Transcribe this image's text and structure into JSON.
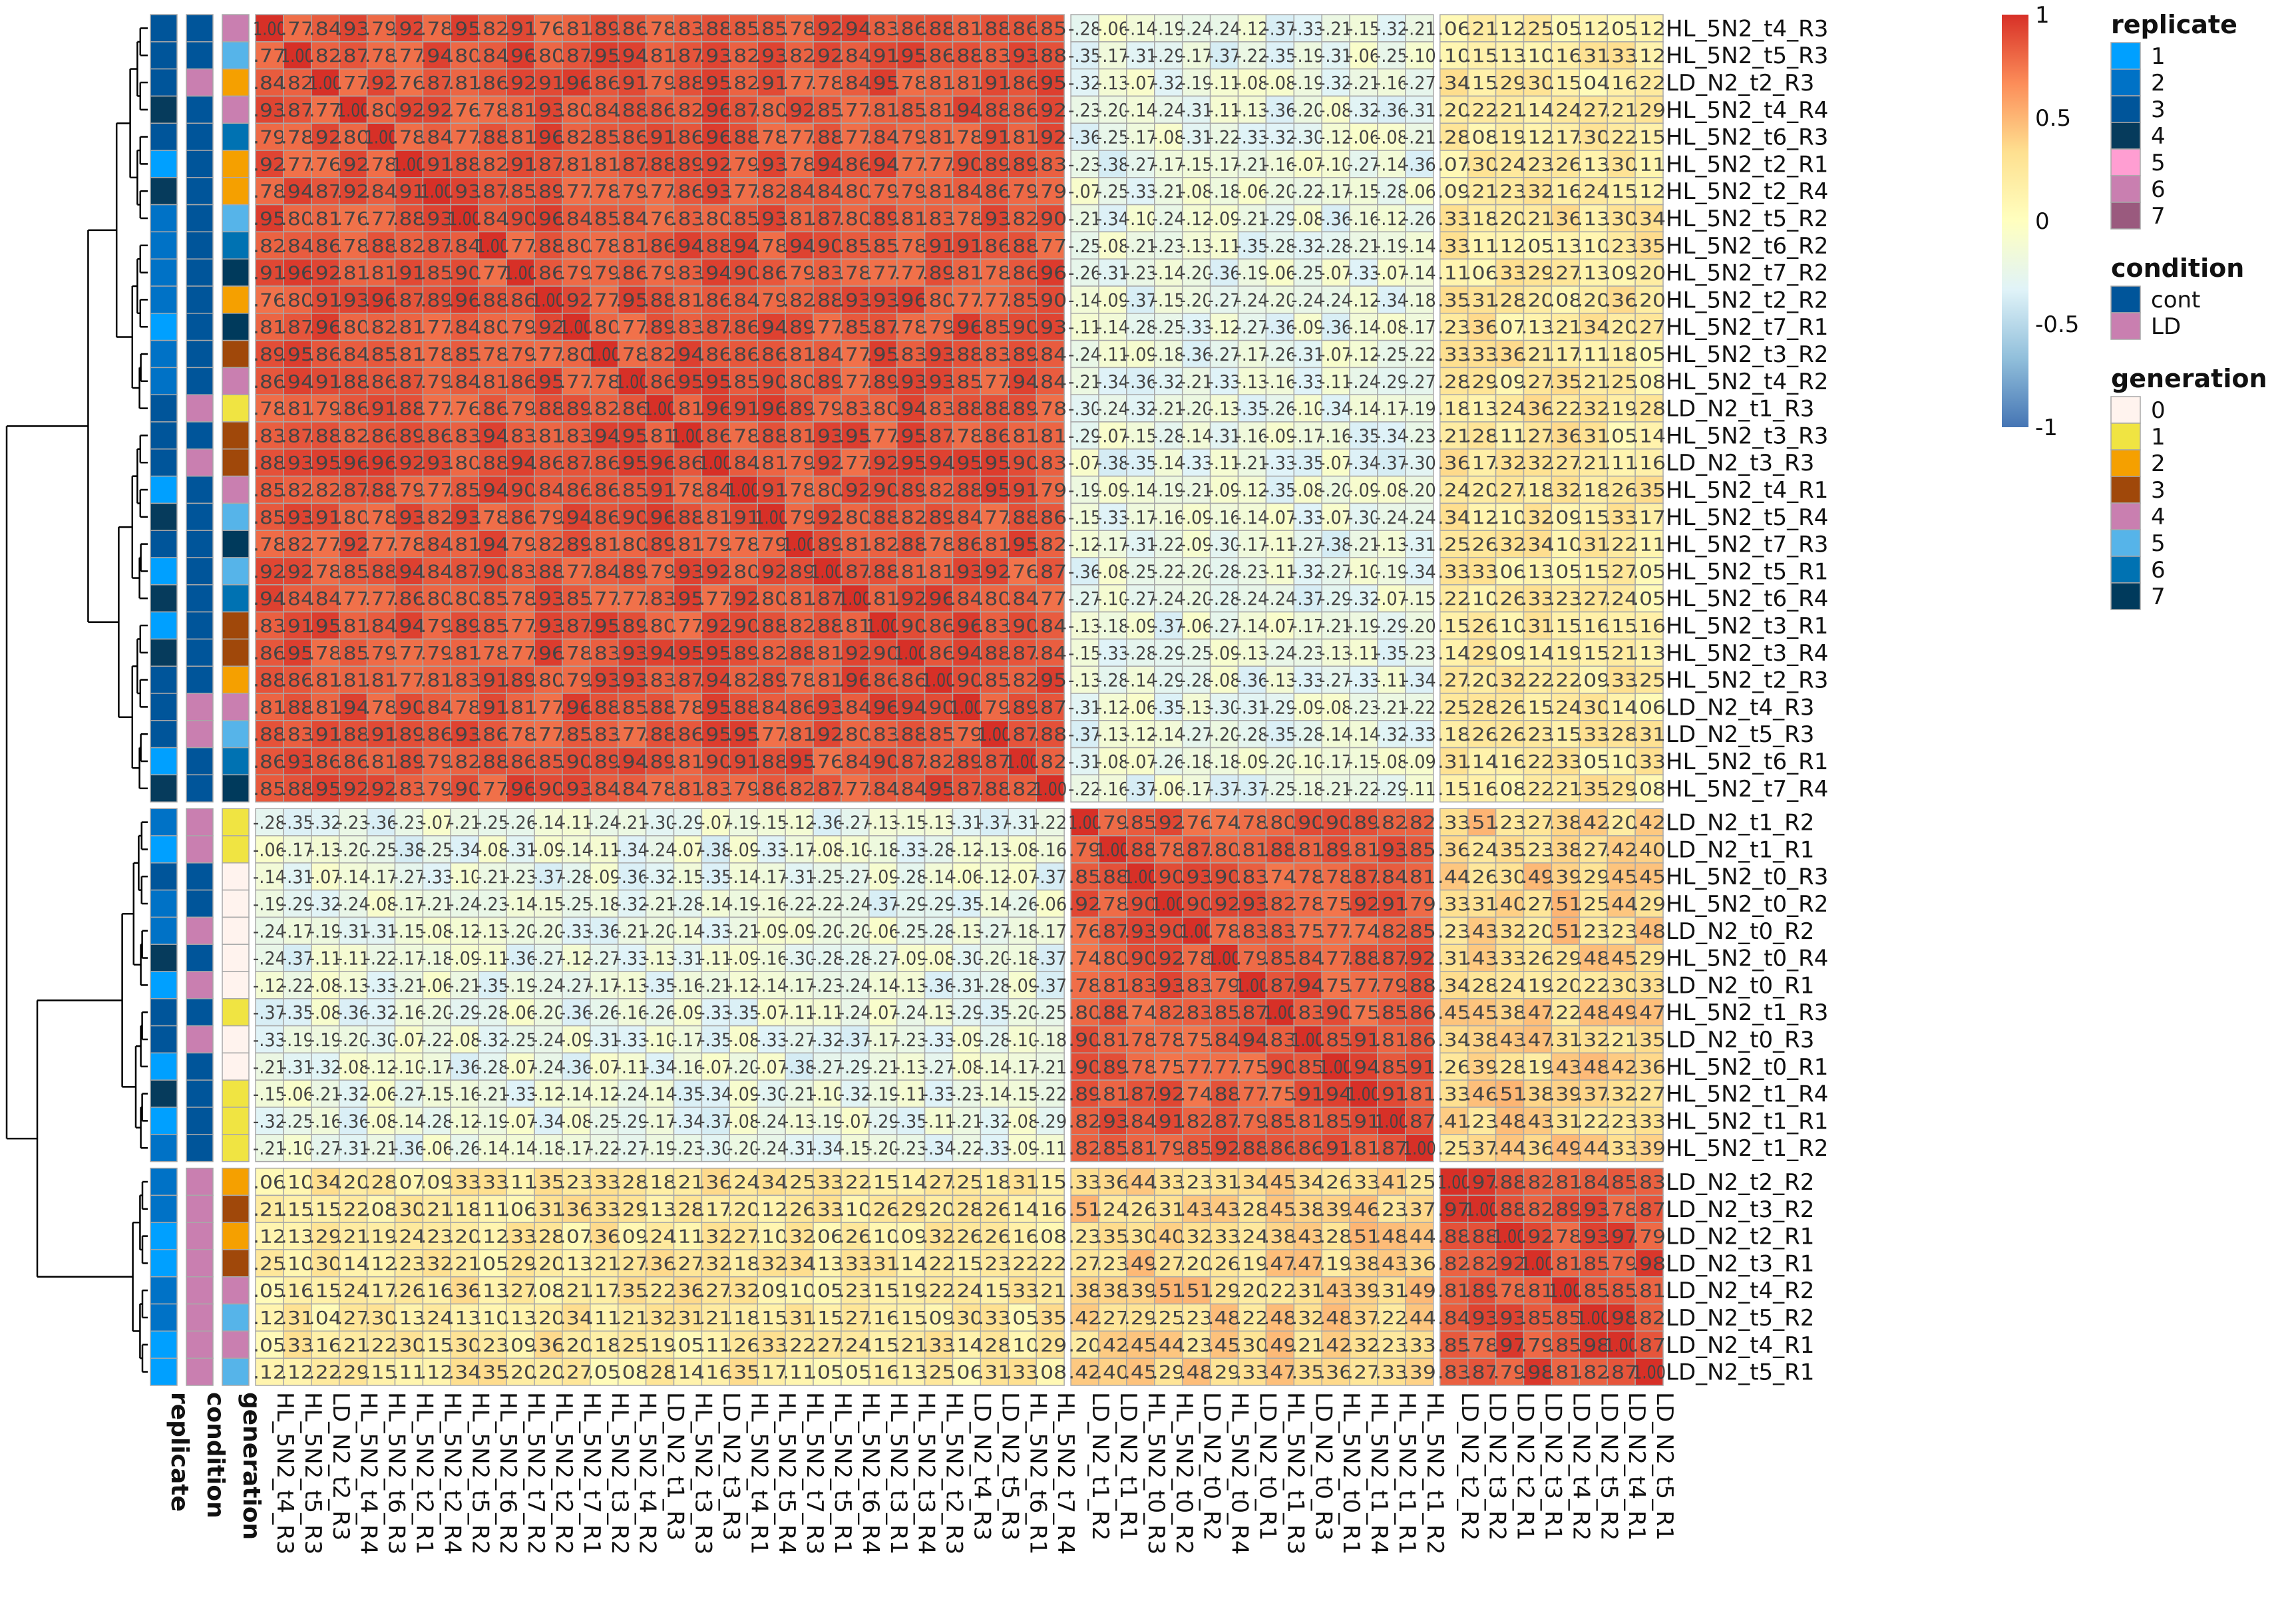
{
  "chart_data": {
    "type": "heatmap",
    "rows": [
      "HL_5N2_t4_R3",
      "HL_5N2_t5_R3",
      "LD_N2_t2_R3",
      "HL_5N2_t4_R4",
      "HL_5N2_t6_R3",
      "HL_5N2_t2_R1",
      "HL_5N2_t2_R4",
      "HL_5N2_t5_R2",
      "HL_5N2_t6_R2",
      "HL_5N2_t7_R2",
      "HL_5N2_t2_R2",
      "HL_5N2_t7_R1",
      "HL_5N2_t3_R2",
      "HL_5N2_t4_R2",
      "LD_N2_t1_R3",
      "HL_5N2_t3_R3",
      "LD_N2_t3_R3",
      "HL_5N2_t4_R1",
      "HL_5N2_t5_R4",
      "HL_5N2_t7_R3",
      "HL_5N2_t5_R1",
      "HL_5N2_t6_R4",
      "HL_5N2_t3_R1",
      "HL_5N2_t3_R4",
      "HL_5N2_t2_R3",
      "LD_N2_t4_R3",
      "LD_N2_t5_R3",
      "HL_5N2_t6_R1",
      "HL_5N2_t7_R4",
      "LD_N2_t1_R2",
      "LD_N2_t1_R1",
      "HL_5N2_t0_R3",
      "HL_5N2_t0_R2",
      "LD_N2_t0_R2",
      "HL_5N2_t0_R4",
      "LD_N2_t0_R1",
      "HL_5N2_t1_R3",
      "LD_N2_t0_R3",
      "HL_5N2_t0_R1",
      "HL_5N2_t1_R4",
      "HL_5N2_t1_R1",
      "HL_5N2_t1_R2",
      "LD_N2_t2_R2",
      "LD_N2_t3_R2",
      "LD_N2_t2_R1",
      "LD_N2_t3_R1",
      "LD_N2_t4_R2",
      "LD_N2_t5_R2",
      "LD_N2_t4_R1",
      "LD_N2_t5_R1"
    ],
    "columns": [
      "HL_5N2_t4_R3",
      "HL_5N2_t5_R3",
      "LD_N2_t2_R3",
      "HL_5N2_t4_R4",
      "HL_5N2_t6_R3",
      "HL_5N2_t2_R1",
      "HL_5N2_t2_R4",
      "HL_5N2_t5_R2",
      "HL_5N2_t6_R2",
      "HL_5N2_t7_R2",
      "HL_5N2_t2_R2",
      "HL_5N2_t7_R1",
      "HL_5N2_t3_R2",
      "HL_5N2_t4_R2",
      "LD_N2_t1_R3",
      "HL_5N2_t3_R3",
      "LD_N2_t3_R3",
      "HL_5N2_t4_R1",
      "HL_5N2_t5_R4",
      "HL_5N2_t7_R3",
      "HL_5N2_t5_R1",
      "HL_5N2_t6_R4",
      "HL_5N2_t3_R1",
      "HL_5N2_t3_R4",
      "HL_5N2_t2_R3",
      "LD_N2_t4_R3",
      "LD_N2_t5_R3",
      "HL_5N2_t6_R1",
      "HL_5N2_t7_R4",
      "LD_N2_t1_R2",
      "LD_N2_t1_R1",
      "HL_5N2_t0_R3",
      "HL_5N2_t0_R2",
      "LD_N2_t0_R2",
      "HL_5N2_t0_R4",
      "LD_N2_t0_R1",
      "HL_5N2_t1_R3",
      "LD_N2_t0_R3",
      "HL_5N2_t0_R1",
      "HL_5N2_t1_R4",
      "HL_5N2_t1_R1",
      "HL_5N2_t1_R2",
      "LD_N2_t2_R2",
      "LD_N2_t3_R2",
      "LD_N2_t2_R1",
      "LD_N2_t3_R1",
      "LD_N2_t4_R2",
      "LD_N2_t5_R2",
      "LD_N2_t4_R1",
      "LD_N2_t5_R1"
    ],
    "row_gaps_after": [
      29,
      42
    ],
    "column_gaps_after": [
      29,
      42
    ],
    "cluster_sizes": [
      29,
      13,
      8
    ],
    "cluster_blocks": [
      [
        0.86,
        -0.22,
        0.2
      ],
      [
        -0.22,
        0.84,
        0.35
      ],
      [
        0.2,
        0.35,
        0.88
      ]
    ],
    "note_values": "",
    "color_scale": {
      "min": -1,
      "max": 1,
      "stops": [
        "#4575b4",
        "#91bfdb",
        "#e0f3f8",
        "#ffffbf",
        "#fee090",
        "#fc8d59",
        "#d73027"
      ]
    },
    "colorbar_ticks": [
      {
        "value": 1,
        "label": "1"
      },
      {
        "value": 0.5,
        "label": "0.5"
      },
      {
        "value": 0,
        "label": "0"
      },
      {
        "value": -0.5,
        "label": "-0.5"
      },
      {
        "value": -1,
        "label": "-1"
      }
    ],
    "annotation_track_labels": [
      "replicate",
      "condition",
      "generation"
    ],
    "legends": [
      {
        "title": "replicate",
        "entries": [
          {
            "label": "1",
            "color": "#00a0ff"
          },
          {
            "label": "2",
            "color": "#0072c6"
          },
          {
            "label": "3",
            "color": "#00559a"
          },
          {
            "label": "4",
            "color": "#063b5c"
          },
          {
            "label": "5",
            "color": "#ff9ed2"
          },
          {
            "label": "6",
            "color": "#c97fb0"
          },
          {
            "label": "7",
            "color": "#9a5a7e"
          }
        ]
      },
      {
        "title": "condition",
        "entries": [
          {
            "label": "cont",
            "color": "#00559a"
          },
          {
            "label": "LD",
            "color": "#c97fb0"
          }
        ]
      },
      {
        "title": "generation",
        "entries": [
          {
            "label": "0",
            "color": "#fff3ee"
          },
          {
            "label": "1",
            "color": "#f0e442"
          },
          {
            "label": "2",
            "color": "#f5a000"
          },
          {
            "label": "3",
            "color": "#a0480a"
          },
          {
            "label": "4",
            "color": "#c97fb0"
          },
          {
            "label": "5",
            "color": "#56b4e9"
          },
          {
            "label": "6",
            "color": "#0072b2"
          },
          {
            "label": "7",
            "color": "#003a5c"
          }
        ]
      }
    ],
    "row_annotations": {
      "replicate": [
        3,
        3,
        3,
        4,
        3,
        1,
        4,
        2,
        2,
        2,
        2,
        1,
        2,
        2,
        3,
        3,
        3,
        1,
        4,
        3,
        1,
        4,
        1,
        4,
        3,
        3,
        3,
        1,
        4,
        2,
        1,
        3,
        2,
        2,
        4,
        1,
        3,
        3,
        1,
        4,
        1,
        2,
        2,
        2,
        1,
        1,
        2,
        2,
        1,
        1
      ],
      "condition": [
        "cont",
        "cont",
        "LD",
        "cont",
        "cont",
        "cont",
        "cont",
        "cont",
        "cont",
        "cont",
        "cont",
        "cont",
        "cont",
        "cont",
        "LD",
        "cont",
        "LD",
        "cont",
        "cont",
        "cont",
        "cont",
        "cont",
        "cont",
        "cont",
        "cont",
        "LD",
        "LD",
        "cont",
        "cont",
        "LD",
        "LD",
        "cont",
        "cont",
        "LD",
        "cont",
        "LD",
        "cont",
        "LD",
        "cont",
        "cont",
        "cont",
        "cont",
        "LD",
        "LD",
        "LD",
        "LD",
        "LD",
        "LD",
        "LD",
        "LD"
      ],
      "generation": [
        4,
        5,
        2,
        4,
        6,
        2,
        2,
        5,
        6,
        7,
        2,
        7,
        3,
        4,
        1,
        3,
        3,
        4,
        5,
        7,
        5,
        6,
        3,
        3,
        2,
        4,
        5,
        6,
        7,
        1,
        1,
        0,
        0,
        0,
        0,
        0,
        1,
        0,
        0,
        1,
        1,
        1,
        2,
        3,
        2,
        3,
        4,
        5,
        4,
        5
      ]
    }
  }
}
